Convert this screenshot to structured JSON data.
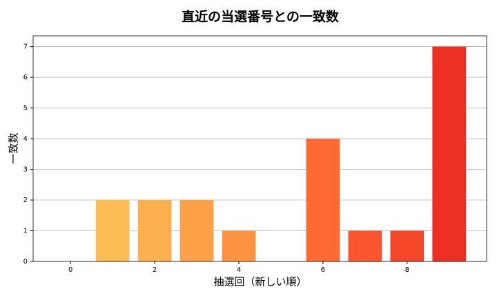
{
  "chart_data": {
    "type": "bar",
    "title": "直近の当選番号との一致数",
    "x_label": "抽選回（新しい順）",
    "y_label": "一致数",
    "x": [
      0,
      1,
      2,
      3,
      4,
      5,
      6,
      7,
      8,
      9
    ],
    "values": [
      0,
      2,
      2,
      2,
      1,
      0,
      4,
      1,
      1,
      7
    ],
    "colors": [
      "#ffc85c",
      "#febc55",
      "#fdb04f",
      "#fca148",
      "#fb9342",
      "#fb8139",
      "#fe6a34",
      "#f9562f",
      "#f4472a",
      "#ec2f23"
    ],
    "xlim": [
      -0.89,
      9.89
    ],
    "ylim": [
      0,
      7.35
    ],
    "xticks": [
      0,
      2,
      4,
      6,
      8
    ],
    "yticks": [
      0,
      1,
      2,
      3,
      4,
      5,
      6,
      7
    ],
    "grid": true
  }
}
